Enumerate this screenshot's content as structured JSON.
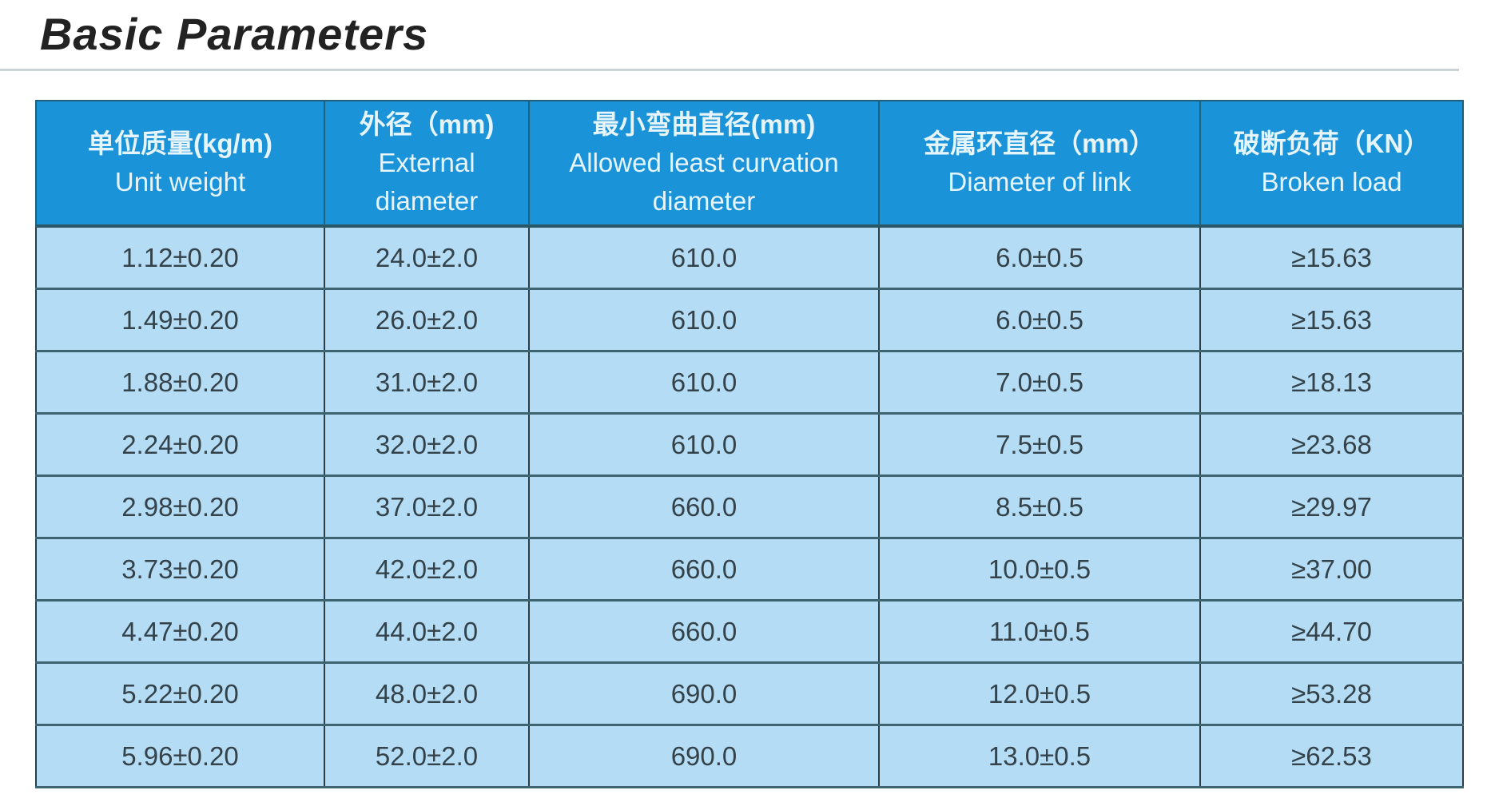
{
  "title": "Basic Parameters",
  "columns": [
    {
      "zh": "单位质量(kg/m)",
      "en": "Unit weight"
    },
    {
      "zh": "外径（mm)",
      "en": "External diameter"
    },
    {
      "zh": "最小弯曲直径(mm)",
      "en": "Allowed least curvation diameter"
    },
    {
      "zh": "金属环直径（mm）",
      "en": "Diameter of link"
    },
    {
      "zh": "破断负荷（KN）",
      "en": "Broken load"
    }
  ],
  "rows": [
    [
      "1.12±0.20",
      "24.0±2.0",
      "610.0",
      "6.0±0.5",
      "≥15.63"
    ],
    [
      "1.49±0.20",
      "26.0±2.0",
      "610.0",
      "6.0±0.5",
      "≥15.63"
    ],
    [
      "1.88±0.20",
      "31.0±2.0",
      "610.0",
      "7.0±0.5",
      "≥18.13"
    ],
    [
      "2.24±0.20",
      "32.0±2.0",
      "610.0",
      "7.5±0.5",
      "≥23.68"
    ],
    [
      "2.98±0.20",
      "37.0±2.0",
      "660.0",
      "8.5±0.5",
      "≥29.97"
    ],
    [
      "3.73±0.20",
      "42.0±2.0",
      "660.0",
      "10.0±0.5",
      "≥37.00"
    ],
    [
      "4.47±0.20",
      "44.0±2.0",
      "660.0",
      "11.0±0.5",
      "≥44.70"
    ],
    [
      "5.22±0.20",
      "48.0±2.0",
      "690.0",
      "12.0±0.5",
      "≥53.28"
    ],
    [
      "5.96±0.20",
      "52.0±2.0",
      "690.0",
      "13.0±0.5",
      "≥62.53"
    ]
  ],
  "colors": {
    "header": "#1a93d9",
    "body": "#b5dcf5",
    "border": "#2c3d44"
  }
}
